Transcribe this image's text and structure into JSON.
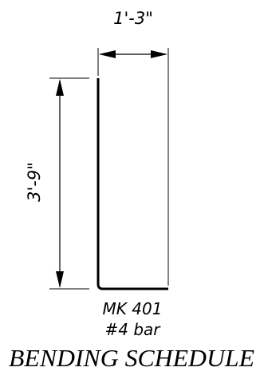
{
  "drawing": {
    "width_dimension": "1'-3\"",
    "height_dimension": "3'-9\"",
    "mark": "MK 401",
    "bar_size": "#4 bar",
    "title": "BENDING SCHEDULE"
  }
}
